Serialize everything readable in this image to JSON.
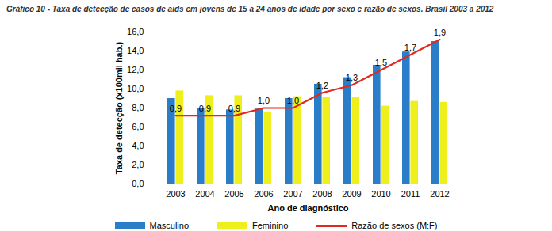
{
  "chart_data": {
    "type": "bar",
    "title": "Gráfico 10 - Taxa de detecção de casos de aids em jovens de 15 a 24 anos de idade por sexo e razão de sexos. Brasil 2003 a 2012",
    "x_label": "Ano de diagnóstico",
    "y_label": "Taxa de detecção (x100mil hab.)",
    "categories": [
      "2003",
      "2004",
      "2005",
      "2006",
      "2007",
      "2008",
      "2009",
      "2010",
      "2011",
      "2012"
    ],
    "series": [
      {
        "name": "Masculino",
        "type": "bar",
        "color": "#2a7dc9",
        "values": [
          9.0,
          8.0,
          7.8,
          7.9,
          9.0,
          10.5,
          11.2,
          12.5,
          13.9,
          15.0
        ]
      },
      {
        "name": "Feminino",
        "type": "bar",
        "color": "#f0ef1e",
        "values": [
          9.8,
          9.3,
          9.3,
          7.6,
          9.2,
          9.1,
          9.1,
          8.2,
          8.7,
          8.6
        ]
      },
      {
        "name": "Razão de sexos (M:F)",
        "type": "line",
        "axis": "y2",
        "color": "#e02a1f",
        "values": [
          0.9,
          0.9,
          0.9,
          1.0,
          1.0,
          1.2,
          1.3,
          1.5,
          1.7,
          1.9
        ],
        "value_labels": [
          "0,9",
          "0,9",
          "0,9",
          "1,0",
          "1,0",
          "1,2",
          "1,3",
          "1,5",
          "1,7",
          "1,9"
        ]
      }
    ],
    "ylim": [
      0,
      16
    ],
    "yticks": [
      {
        "value": 0,
        "label": "0,0"
      },
      {
        "value": 2,
        "label": "2,0"
      },
      {
        "value": 4,
        "label": "4,0"
      },
      {
        "value": 6,
        "label": "6,0"
      },
      {
        "value": 8,
        "label": "8,0"
      },
      {
        "value": 10,
        "label": "10,0"
      },
      {
        "value": 12,
        "label": "12,0"
      },
      {
        "value": 14,
        "label": "14,0"
      },
      {
        "value": 16,
        "label": "16,0"
      }
    ],
    "y2lim": [
      0,
      2
    ],
    "grid": false,
    "data_labels": true,
    "legend": "bottom"
  }
}
